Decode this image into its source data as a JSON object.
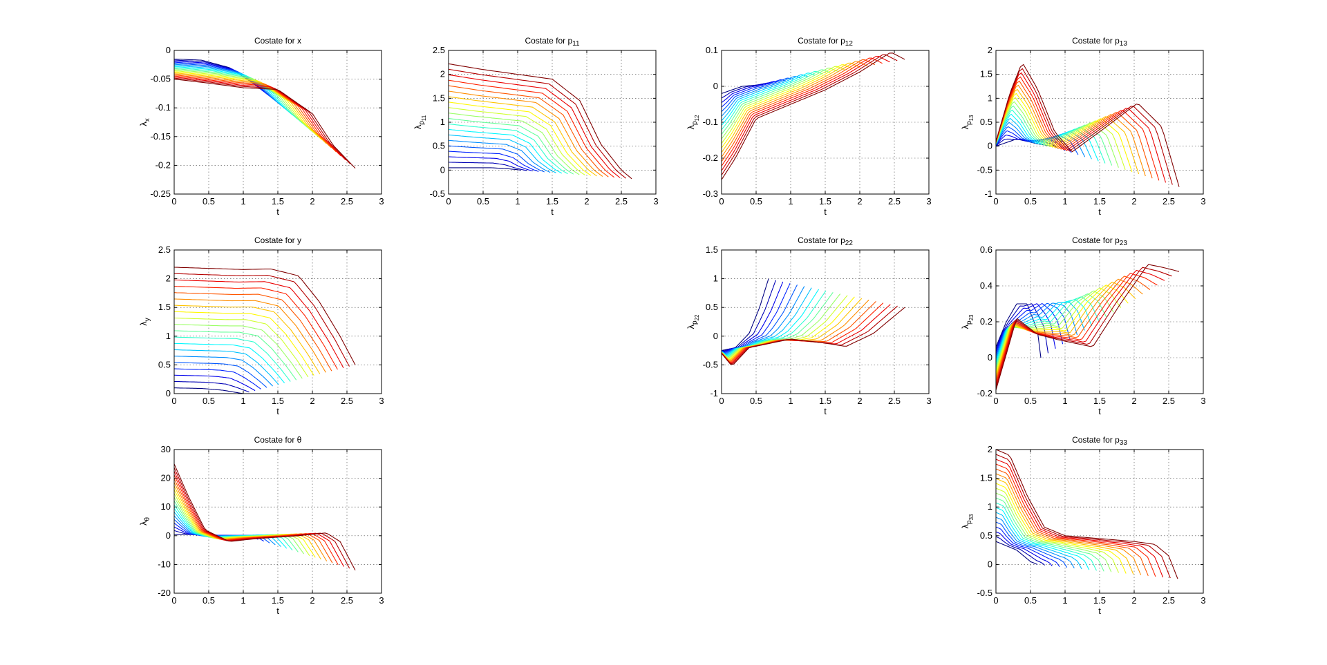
{
  "chart_data": [
    {
      "id": "x",
      "type": "line",
      "title": "Costate for x",
      "title_base": "Costate for x",
      "title_sub": "",
      "xlabel": "t",
      "ylabel_base": "λ",
      "ylabel_sub": "x",
      "ylabel_subsub": "",
      "xlim": [
        0,
        3
      ],
      "ylim": [
        -0.25,
        0
      ],
      "xticks": [
        "0",
        "0.5",
        "1",
        "1.5",
        "2",
        "2.5",
        "3"
      ],
      "yticks": [
        "-0.25",
        "-0.2",
        "-0.15",
        "-0.1",
        "-0.05",
        "0"
      ],
      "grid": true,
      "legend": "none",
      "colormap": "jet",
      "series_count": 20,
      "series_first": {
        "x": [
          0,
          0.4,
          0.8,
          1.05,
          1.3
        ],
        "y": [
          -0.015,
          -0.017,
          -0.03,
          -0.05,
          -0.07
        ]
      },
      "series_last": {
        "x": [
          0,
          0.5,
          1.0,
          1.5,
          2.0,
          2.3,
          2.62
        ],
        "y": [
          -0.05,
          -0.057,
          -0.065,
          -0.068,
          -0.11,
          -0.165,
          -0.205
        ]
      }
    },
    {
      "id": "p11",
      "type": "line",
      "title": "Costate for p11",
      "title_base": "Costate for p",
      "title_sub": "11",
      "xlabel": "t",
      "ylabel_base": "λ",
      "ylabel_sub": "p",
      "ylabel_subsub": "11",
      "xlim": [
        0,
        3
      ],
      "ylim": [
        -0.5,
        2.5
      ],
      "xticks": [
        "0",
        "0.5",
        "1",
        "1.5",
        "2",
        "2.5",
        "3"
      ],
      "yticks": [
        "-0.5",
        "0",
        "0.5",
        "1",
        "1.5",
        "2",
        "2.5"
      ],
      "grid": true,
      "legend": "none",
      "colormap": "jet",
      "series_count": 20,
      "series_first": {
        "x": [
          0,
          0.3,
          0.6,
          0.85,
          1.05
        ],
        "y": [
          0.05,
          0.05,
          0.05,
          0.03,
          0.0
        ]
      },
      "series_last": {
        "x": [
          0,
          0.5,
          1.0,
          1.5,
          1.9,
          2.2,
          2.5,
          2.65
        ],
        "y": [
          2.22,
          2.1,
          2.0,
          1.9,
          1.45,
          0.55,
          0.0,
          -0.18
        ]
      }
    },
    {
      "id": "p12",
      "type": "line",
      "title": "Costate for p12",
      "title_base": "Costate for p",
      "title_sub": "12",
      "xlabel": "t",
      "ylabel_base": "λ",
      "ylabel_sub": "p",
      "ylabel_subsub": "12",
      "xlim": [
        0,
        3
      ],
      "ylim": [
        -0.3,
        0.1
      ],
      "xticks": [
        "0",
        "0.5",
        "1",
        "1.5",
        "2",
        "2.5",
        "3"
      ],
      "yticks": [
        "-0.3",
        "-0.2",
        "-0.1",
        "0",
        "0.1"
      ],
      "grid": true,
      "legend": "none",
      "colormap": "jet",
      "series_count": 20,
      "series_first": {
        "x": [
          0,
          0.3,
          0.6
        ],
        "y": [
          -0.02,
          0.0,
          0.005
        ]
      },
      "series_last": {
        "x": [
          0,
          0.2,
          0.5,
          1.0,
          1.5,
          2.0,
          2.45,
          2.65
        ],
        "y": [
          -0.26,
          -0.2,
          -0.09,
          -0.05,
          -0.01,
          0.04,
          0.095,
          0.075
        ]
      }
    },
    {
      "id": "p13",
      "type": "line",
      "title": "Costate for p13",
      "title_base": "Costate for p",
      "title_sub": "13",
      "xlabel": "t",
      "ylabel_base": "λ",
      "ylabel_sub": "p",
      "ylabel_subsub": "13",
      "xlim": [
        0,
        3
      ],
      "ylim": [
        -1,
        2
      ],
      "xticks": [
        "0",
        "0.5",
        "1",
        "1.5",
        "2",
        "2.5",
        "3"
      ],
      "yticks": [
        "-1",
        "-0.5",
        "0",
        "0.5",
        "1",
        "1.5",
        "2"
      ],
      "grid": true,
      "legend": "none",
      "colormap": "jet",
      "series_count": 20,
      "series_first": {
        "x": [
          0,
          0.3,
          0.6,
          0.8
        ],
        "y": [
          0.0,
          0.15,
          0.05,
          0.0
        ]
      },
      "series_last": {
        "x": [
          0,
          0.2,
          0.38,
          0.6,
          0.85,
          1.1,
          1.5,
          2.05,
          2.4,
          2.65
        ],
        "y": [
          0.1,
          1.1,
          1.75,
          1.2,
          0.3,
          -0.12,
          0.3,
          0.9,
          0.4,
          -0.85
        ]
      }
    },
    {
      "id": "y",
      "type": "line",
      "title": "Costate for y",
      "title_base": "Costate for y",
      "title_sub": "",
      "xlabel": "t",
      "ylabel_base": "λ",
      "ylabel_sub": "y",
      "ylabel_subsub": "",
      "xlim": [
        0,
        3
      ],
      "ylim": [
        0,
        2.5
      ],
      "xticks": [
        "0",
        "0.5",
        "1",
        "1.5",
        "2",
        "2.5",
        "3"
      ],
      "yticks": [
        "0",
        "0.5",
        "1",
        "1.5",
        "2",
        "2.5"
      ],
      "grid": true,
      "legend": "none",
      "colormap": "jet",
      "series_count": 20,
      "series_first": {
        "x": [
          0,
          0.4,
          0.7,
          0.9,
          1.0
        ],
        "y": [
          0.1,
          0.09,
          0.06,
          0.02,
          0.0
        ]
      },
      "series_last": {
        "x": [
          0,
          0.5,
          1.0,
          1.4,
          1.8,
          2.1,
          2.4,
          2.62
        ],
        "y": [
          2.2,
          2.18,
          2.16,
          2.17,
          2.05,
          1.6,
          1.0,
          0.5
        ]
      }
    },
    {
      "id": "p22",
      "type": "line",
      "title": "Costate for p22",
      "title_base": "Costate for p",
      "title_sub": "22",
      "xlabel": "t",
      "ylabel_base": "λ",
      "ylabel_sub": "p",
      "ylabel_subsub": "22",
      "xlim": [
        0,
        3
      ],
      "ylim": [
        -1,
        1.5
      ],
      "xticks": [
        "0",
        "0.5",
        "1",
        "1.5",
        "2",
        "2.5",
        "3"
      ],
      "yticks": [
        "-1",
        "-0.5",
        "0",
        "0.5",
        "1",
        "1.5"
      ],
      "grid": true,
      "legend": "none",
      "colormap": "jet",
      "series_count": 20,
      "series_first": {
        "x": [
          0,
          0.2,
          0.4,
          0.55,
          0.68
        ],
        "y": [
          -0.25,
          -0.2,
          0.05,
          0.5,
          1.0
        ]
      },
      "series_last": {
        "x": [
          0,
          0.15,
          0.4,
          1.0,
          1.5,
          1.8,
          2.2,
          2.65
        ],
        "y": [
          -0.3,
          -0.52,
          -0.2,
          -0.05,
          -0.12,
          -0.18,
          0.05,
          0.5
        ]
      }
    },
    {
      "id": "p23",
      "type": "line",
      "title": "Costate for p23",
      "title_base": "Costate for p",
      "title_sub": "23",
      "xlabel": "t",
      "ylabel_base": "λ",
      "ylabel_sub": "p",
      "ylabel_subsub": "23",
      "xlim": [
        0,
        3
      ],
      "ylim": [
        -0.2,
        0.6
      ],
      "xticks": [
        "0",
        "0.5",
        "1",
        "1.5",
        "2",
        "2.5",
        "3"
      ],
      "yticks": [
        "-0.2",
        "0",
        "0.2",
        "0.4",
        "0.6"
      ],
      "grid": true,
      "legend": "none",
      "colormap": "jet",
      "series_count": 20,
      "series_first": {
        "x": [
          0,
          0.15,
          0.3,
          0.45,
          0.6,
          0.65
        ],
        "y": [
          0.06,
          0.2,
          0.3,
          0.3,
          0.15,
          0.0
        ]
      },
      "series_last": {
        "x": [
          0,
          0.3,
          0.6,
          0.9,
          1.4,
          1.8,
          2.2,
          2.45,
          2.65
        ],
        "y": [
          -0.18,
          0.22,
          0.13,
          0.1,
          0.06,
          0.3,
          0.52,
          0.5,
          0.48
        ]
      }
    },
    {
      "id": "theta",
      "type": "line",
      "title": "Costate for θ",
      "title_base": "Costate for θ",
      "title_sub": "",
      "xlabel": "t",
      "ylabel_base": "λ",
      "ylabel_sub": "θ",
      "ylabel_subsub": "",
      "xlim": [
        0,
        3
      ],
      "ylim": [
        -20,
        30
      ],
      "xticks": [
        "0",
        "0.5",
        "1",
        "1.5",
        "2",
        "2.5",
        "3"
      ],
      "yticks": [
        "-20",
        "-10",
        "0",
        "10",
        "20",
        "30"
      ],
      "grid": true,
      "legend": "none",
      "colormap": "jet",
      "series_count": 20,
      "series_first": {
        "x": [
          0,
          0.5,
          0.9,
          1.05
        ],
        "y": [
          0.5,
          0.3,
          0.0,
          0.0
        ]
      },
      "series_last": {
        "x": [
          0,
          0.2,
          0.45,
          0.8,
          1.2,
          1.8,
          2.2,
          2.4,
          2.62
        ],
        "y": [
          25,
          14,
          2,
          -2,
          -1,
          0,
          1,
          -2,
          -12
        ]
      }
    },
    {
      "id": "p33",
      "type": "line",
      "title": "Costate for p33",
      "title_base": "Costate for p",
      "title_sub": "33",
      "xlabel": "t",
      "ylabel_base": "λ",
      "ylabel_sub": "p",
      "ylabel_subsub": "33",
      "xlim": [
        0,
        3
      ],
      "ylim": [
        -0.5,
        2
      ],
      "xticks": [
        "0",
        "0.5",
        "1",
        "1.5",
        "2",
        "2.5",
        "3"
      ],
      "yticks": [
        "-0.5",
        "0",
        "0.5",
        "1",
        "1.5",
        "2"
      ],
      "grid": true,
      "legend": "none",
      "colormap": "jet",
      "series_count": 20,
      "series_first": {
        "x": [
          0,
          0.3,
          0.5,
          0.6
        ],
        "y": [
          0.4,
          0.25,
          0.05,
          0.0
        ]
      },
      "series_last": {
        "x": [
          0,
          0.2,
          0.45,
          0.7,
          1.0,
          1.5,
          2.0,
          2.3,
          2.5,
          2.63
        ],
        "y": [
          2.0,
          1.9,
          1.2,
          0.65,
          0.5,
          0.45,
          0.4,
          0.35,
          0.15,
          -0.25
        ]
      }
    }
  ]
}
